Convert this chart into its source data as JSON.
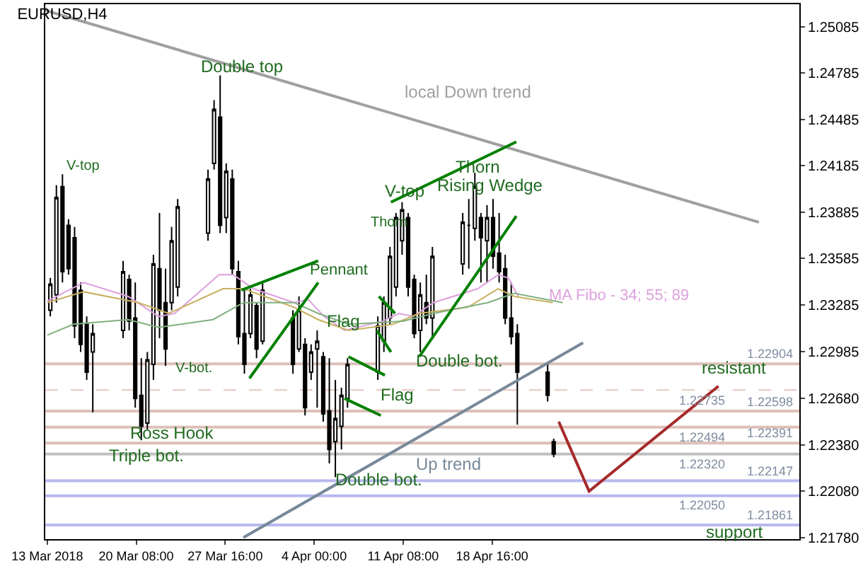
{
  "chart_data": {
    "type": "candlestick",
    "title": "EURUSD,H4",
    "x": [
      "2018-03-13T06:00",
      "2018-03-13T18:00",
      "2018-03-14T06:00",
      "2018-03-14T18:00",
      "2018-03-15T06:00",
      "2018-03-15T18:00",
      "2018-03-16T06:00",
      "2018-03-16T18:00",
      "2018-03-19T06:00",
      "2018-03-19T18:00",
      "2018-03-20T06:00",
      "2018-03-20T18:00",
      "2018-03-21T06:00",
      "2018-03-21T18:00",
      "2018-03-22T06:00",
      "2018-03-22T18:00",
      "2018-03-23T06:00",
      "2018-03-23T18:00",
      "2018-03-26T06:00",
      "2018-03-26T18:00",
      "2018-03-27T06:00",
      "2018-03-27T18:00",
      "2018-03-28T06:00",
      "2018-03-28T18:00",
      "2018-03-29T06:00",
      "2018-03-29T18:00",
      "2018-03-30T06:00",
      "2018-03-30T18:00",
      "2018-04-02T06:00",
      "2018-04-02T18:00",
      "2018-04-03T06:00",
      "2018-04-03T18:00",
      "2018-04-04T06:00",
      "2018-04-04T18:00",
      "2018-04-05T06:00",
      "2018-04-05T18:00",
      "2018-04-06T06:00",
      "2018-04-06T18:00",
      "2018-04-09T06:00",
      "2018-04-09T18:00",
      "2018-04-10T06:00",
      "2018-04-10T18:00",
      "2018-04-11T06:00",
      "2018-04-11T18:00",
      "2018-04-12T06:00",
      "2018-04-12T18:00",
      "2018-04-13T06:00",
      "2018-04-13T18:00",
      "2018-04-16T06:00",
      "2018-04-16T18:00",
      "2018-04-17T06:00",
      "2018-04-17T18:00",
      "2018-04-18T06:00",
      "2018-04-18T18:00",
      "2018-04-19T06:00",
      "2018-04-19T18:00",
      "2018-04-20T06:00",
      "2018-04-20T18:00",
      "2018-04-23T06:00",
      "2018-04-23T18:00"
    ],
    "ohlc": [
      [
        1.2325,
        1.2346,
        1.2321,
        1.2342
      ],
      [
        1.2335,
        1.2406,
        1.233,
        1.2398
      ],
      [
        1.2405,
        1.2413,
        1.2343,
        1.235
      ],
      [
        1.238,
        1.2384,
        1.2348,
        1.2352
      ],
      [
        1.2372,
        1.2379,
        1.2307,
        1.2315
      ],
      [
        1.2338,
        1.2343,
        1.2298,
        1.2303
      ],
      [
        1.2316,
        1.2321,
        1.228,
        1.2285
      ],
      [
        1.2298,
        1.2316,
        1.2259,
        1.231
      ],
      [
        1.2312,
        1.2357,
        1.2307,
        1.235
      ],
      [
        1.2345,
        1.2348,
        1.2312,
        1.2318
      ],
      [
        1.232,
        1.2343,
        1.2262,
        1.2268
      ],
      [
        1.227,
        1.2294,
        1.2241,
        1.225
      ],
      [
        1.2252,
        1.2298,
        1.2248,
        1.2293
      ],
      [
        1.229,
        1.2361,
        1.228,
        1.2355
      ],
      [
        1.2352,
        1.2388,
        1.2307,
        1.2325
      ],
      [
        1.233,
        1.2352,
        1.2289,
        1.23
      ],
      [
        1.233,
        1.2379,
        1.2325,
        1.237
      ],
      [
        1.234,
        1.2397,
        1.2334,
        1.2392
      ],
      [
        1.2375,
        1.2416,
        1.237,
        1.241
      ],
      [
        1.242,
        1.2461,
        1.2416,
        1.2455
      ],
      [
        1.245,
        1.2477,
        1.2375,
        1.238
      ],
      [
        1.2385,
        1.242,
        1.2375,
        1.2415
      ],
      [
        1.241,
        1.2416,
        1.2348,
        1.2352
      ],
      [
        1.235,
        1.2357,
        1.2303,
        1.2308
      ],
      [
        1.231,
        1.2339,
        1.2284,
        1.229
      ],
      [
        1.231,
        1.2339,
        1.2307,
        1.2335
      ],
      [
        1.2328,
        1.233,
        1.2294,
        1.23
      ],
      [
        1.2305,
        1.2343,
        1.2303,
        1.2338
      ],
      [
        1.232,
        1.2325,
        1.2284,
        1.229
      ],
      [
        1.23,
        1.2334,
        1.2298,
        1.2325
      ],
      [
        1.2303,
        1.2307,
        1.2257,
        1.2262
      ],
      [
        1.2285,
        1.2303,
        1.228,
        1.2298
      ],
      [
        1.23,
        1.2312,
        1.2262,
        1.2305
      ],
      [
        1.2295,
        1.2298,
        1.2253,
        1.2258
      ],
      [
        1.226,
        1.2294,
        1.2226,
        1.2235
      ],
      [
        1.224,
        1.228,
        1.2217,
        1.2255
      ],
      [
        1.225,
        1.2275,
        1.2235,
        1.227
      ],
      [
        1.2268,
        1.2294,
        1.2262,
        1.229
      ],
      [
        1.2285,
        1.2321,
        1.228,
        1.2315
      ],
      [
        1.2305,
        1.2334,
        1.2298,
        1.233
      ],
      [
        1.232,
        1.2366,
        1.2316,
        1.236
      ],
      [
        1.234,
        1.2388,
        1.2334,
        1.2385
      ],
      [
        1.237,
        1.2395,
        1.2361,
        1.239
      ],
      [
        1.2385,
        1.2388,
        1.2334,
        1.234
      ],
      [
        1.2345,
        1.2348,
        1.2307,
        1.231
      ],
      [
        1.2312,
        1.2343,
        1.2298,
        1.2335
      ],
      [
        1.233,
        1.2348,
        1.2316,
        1.232
      ],
      [
        1.232,
        1.2366,
        1.2307,
        1.236
      ],
      [
        1.2355,
        1.2388,
        1.2348,
        1.2382
      ],
      [
        1.238,
        1.2397,
        1.2352,
        1.238
      ],
      [
        1.2378,
        1.2414,
        1.237,
        1.2405
      ],
      [
        1.2385,
        1.2388,
        1.2343,
        1.2372
      ],
      [
        1.237,
        1.2393,
        1.2343,
        1.2385
      ],
      [
        1.2385,
        1.2397,
        1.2352,
        1.236
      ],
      [
        1.2362,
        1.2388,
        1.2343,
        1.235
      ],
      [
        1.2352,
        1.2361,
        1.2316,
        1.232
      ],
      [
        1.232,
        1.2343,
        1.2303,
        1.2308
      ],
      [
        1.231,
        1.2316,
        1.2251,
        1.2285
      ],
      [
        1.2285,
        1.2291,
        1.2266,
        1.227
      ],
      [
        1.224,
        1.2242,
        1.223,
        1.2232
      ]
    ],
    "color": "#000000",
    "series": [
      {
        "type": "line",
        "name": "MA Fibo - 34; 55; 89",
        "color": "#dda0dd",
        "x": [
          "2018-03-13T00:00",
          "2018-03-16T00:00",
          "2018-03-19T16:00",
          "2018-03-22T04:00",
          "2018-03-23T12:00",
          "2018-03-27T04:00",
          "2018-03-28T08:00",
          "2018-03-30T00:00",
          "2018-04-02T08:00",
          "2018-04-03T12:00",
          "2018-04-04T20:00",
          "2018-04-06T12:00",
          "2018-04-09T16:00",
          "2018-04-11T00:00",
          "2018-04-12T04:00",
          "2018-04-13T20:00",
          "2018-04-17T12:00",
          "2018-04-19T04:00",
          "2018-04-20T00:00",
          "2018-04-20T20:00"
        ],
        "values": [
          1.2331,
          1.2343,
          1.2334,
          1.2321,
          1.2323,
          1.2348,
          1.2348,
          1.2339,
          1.233,
          1.2332,
          1.2321,
          1.2312,
          1.2318,
          1.2323,
          1.2321,
          1.233,
          1.2339,
          1.2348,
          1.2346,
          1.2334
        ]
      },
      {
        "type": "line",
        "color": "#c8b060",
        "x": [
          "2018-03-13T00:00",
          "2018-03-16T00:00",
          "2018-03-20T12:00",
          "2018-03-23T00:00",
          "2018-03-27T12:00",
          "2018-03-29T04:00",
          "2018-04-02T08:00",
          "2018-04-04T08:00",
          "2018-04-06T20:00",
          "2018-04-10T12:00",
          "2018-04-12T16:00",
          "2018-04-16T16:00",
          "2018-04-19T04:00",
          "2018-04-20T12:00",
          "2018-04-23T16:00"
        ],
        "values": [
          1.233,
          1.2337,
          1.233,
          1.2323,
          1.2339,
          1.2339,
          1.2327,
          1.2319,
          1.2312,
          1.2316,
          1.2323,
          1.2327,
          1.2339,
          1.2334,
          1.233
        ]
      },
      {
        "type": "line",
        "color": "#80b080",
        "x": [
          "2018-03-13T00:00",
          "2018-03-15T04:00",
          "2018-03-19T16:00",
          "2018-03-22T04:00",
          "2018-03-26T16:00",
          "2018-03-29T04:00",
          "2018-04-02T08:00",
          "2018-04-04T08:00",
          "2018-04-06T20:00",
          "2018-04-11T08:00",
          "2018-04-13T20:00",
          "2018-04-18T08:00",
          "2018-04-20T12:00",
          "2018-04-24T12:00"
        ],
        "values": [
          1.2309,
          1.2316,
          1.2319,
          1.2314,
          1.2319,
          1.233,
          1.233,
          1.2323,
          1.2316,
          1.2318,
          1.2323,
          1.233,
          1.2336,
          1.233
        ]
      },
      {
        "type": "line",
        "name": "local Down trend",
        "color": "#a0a0a0",
        "x": [
          "2018-03-12T20:00",
          "2018-05-10T16:00"
        ],
        "values": [
          1.2519,
          1.2382
        ]
      },
      {
        "type": "line",
        "name": "Up trend",
        "color": "#778899",
        "x": [
          "2018-03-29T04:00",
          "2018-04-26T04:00"
        ],
        "values": [
          1.2178,
          1.2304
        ]
      },
      {
        "type": "line",
        "color": "#008000",
        "x": [
          "2018-03-29T00:00",
          "2018-04-04T08:00"
        ],
        "values": [
          1.2338,
          1.2357
        ]
      },
      {
        "type": "line",
        "color": "#008000",
        "x": [
          "2018-03-29T16:00",
          "2018-04-04T08:00"
        ],
        "values": [
          1.2281,
          1.2343
        ]
      },
      {
        "type": "line",
        "color": "#008000",
        "x": [
          "2018-04-09T08:00",
          "2018-04-10T16:00"
        ],
        "values": [
          1.2334,
          1.2323
        ]
      },
      {
        "type": "line",
        "color": "#008000",
        "x": [
          "2018-04-09T04:00",
          "2018-04-10T08:00"
        ],
        "values": [
          1.2312,
          1.2298
        ]
      },
      {
        "type": "line",
        "color": "#008000",
        "x": [
          "2018-04-06T20:00",
          "2018-04-09T20:00"
        ],
        "values": [
          1.2295,
          1.2283
        ]
      },
      {
        "type": "line",
        "color": "#008000",
        "x": [
          "2018-04-06T12:00",
          "2018-04-09T12:00"
        ],
        "values": [
          1.2268,
          1.2257
        ]
      },
      {
        "type": "line",
        "color": "#008000",
        "x": [
          "2018-04-10T08:00",
          "2018-04-20T16:00"
        ],
        "values": [
          1.2395,
          1.2434
        ]
      },
      {
        "type": "line",
        "color": "#008000",
        "x": [
          "2018-04-12T16:00",
          "2018-04-20T16:00"
        ],
        "values": [
          1.2295,
          1.2386
        ]
      },
      {
        "type": "line",
        "color": "#a52a2a",
        "x": [
          "2018-04-24T04:00",
          "2018-04-26T16:00",
          "2018-05-07T08:00"
        ],
        "values": [
          1.2253,
          1.2208,
          1.2276
        ]
      }
    ],
    "ref_lines": [
      {
        "axis": "y",
        "value": 1.22904,
        "label": "1.22904",
        "color": "#dcc0b8",
        "line_style": "solid"
      },
      {
        "axis": "y",
        "value": 1.22735,
        "label": "1.22735",
        "color": "#e8c8c0",
        "line_style": "dashed"
      },
      {
        "axis": "y",
        "value": 1.22598,
        "label": "1.22598",
        "color": "#dcc0b8",
        "line_style": "solid"
      },
      {
        "axis": "y",
        "value": 1.22494,
        "label": "1.22494",
        "color": "#dcc0b8",
        "line_style": "solid"
      },
      {
        "axis": "y",
        "value": 1.22391,
        "label": "1.22391",
        "color": "#dcc0b8",
        "line_style": "solid"
      },
      {
        "axis": "y",
        "value": 1.2232,
        "label": "1.22320",
        "color": "#c0c0c0",
        "line_style": "solid"
      },
      {
        "axis": "y",
        "value": 1.22147,
        "label": "1.22147",
        "color": "#b8b8f0",
        "line_style": "solid"
      },
      {
        "axis": "y",
        "value": 1.2205,
        "label": "1.22050",
        "color": "#b8b8f0",
        "line_style": "solid"
      },
      {
        "axis": "y",
        "value": 1.21861,
        "label": "1.21861",
        "color": "#b8b8f0",
        "line_style": "solid"
      }
    ],
    "annotations": [
      {
        "text": "Double top",
        "x": "2018-03-29T00:00",
        "y": 1.2483
      },
      "V-top",
      "V-bot.",
      {
        "text": "Ross Hook",
        "x": "2018-03-23T08:00",
        "y": 1.2246
      },
      {
        "text": "Triple bot.",
        "x": "2018-03-21T04:00",
        "y": 1.2231
      },
      "Pennant",
      {
        "text": "Flag",
        "x": "2018-04-06T08:00",
        "y": 1.2318
      },
      {
        "text": "Flag",
        "x": "2018-04-10T20:00",
        "y": 1.227
      },
      "Thorn",
      {
        "text": "V-top",
        "x": "2018-04-11T12:00",
        "y": 1.2402
      },
      {
        "text": "Thorn",
        "x": "2018-04-17T12:00",
        "y": 1.2418
      },
      "Rising Wedge",
      {
        "text": "Double bot.",
        "x": "2018-04-16T00:00",
        "y": 1.2292
      },
      {
        "text": "Double bot.",
        "x": "2018-04-09T08:00",
        "y": 1.2215
      },
      {
        "text": "resistant",
        "x": "2018-05-08T16:00",
        "y": 1.2288
      },
      {
        "text": "support",
        "x": "2018-05-08T16:00",
        "y": 1.2182
      }
    ],
    "xlim": [
      "2018-03-12T20:00",
      "2018-05-14T00:00"
    ],
    "xticks": [
      {
        "value": "2018-03-13T00:00",
        "label": "13 Mar 2018"
      },
      {
        "value": "2018-03-20T08:00",
        "label": "20 Mar 08:00"
      },
      {
        "value": "2018-03-27T16:00",
        "label": "27 Mar 16:00"
      },
      {
        "value": "2018-04-04T00:00",
        "label": "4 Apr 00:00"
      },
      {
        "value": "2018-04-11T08:00",
        "label": "11 Apr 08:00"
      },
      {
        "value": "2018-04-18T16:00",
        "label": "18 Apr 16:00"
      }
    ],
    "ylim": [
      1.2177,
      1.2523
    ],
    "yticks": [
      1.25085,
      1.24785,
      1.24485,
      1.24185,
      1.23885,
      1.23585,
      1.23285,
      1.22985,
      {
        "value": 1.2268,
        "label": "1.22680"
      },
      {
        "value": 1.2238,
        "label": "1.22380"
      },
      {
        "value": 1.2208,
        "label": "1.22080"
      },
      {
        "value": 1.2178,
        "label": "1.21780"
      }
    ],
    "grid": false
  }
}
